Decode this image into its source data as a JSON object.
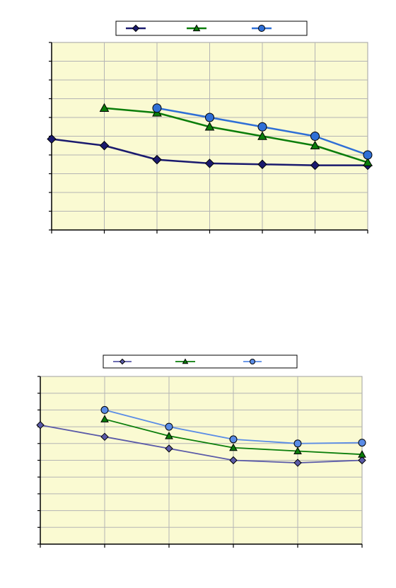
{
  "colors": {
    "plot_background": "#fafad2",
    "series_navy": "#1a1a6e",
    "series_green": "#0a7d0a",
    "series_blue": "#2f6fd6",
    "series_slate": "#5a5aa8",
    "series_lightblue": "#5a8ce6"
  },
  "chart_data": [
    {
      "type": "line",
      "title": "",
      "xlabel": "",
      "ylabel": "",
      "legend_position": "top-center",
      "grid": true,
      "x": [
        0,
        1,
        2,
        3,
        4,
        5,
        6
      ],
      "xlim": [
        0,
        6
      ],
      "ylim": [
        0,
        10
      ],
      "series": [
        {
          "values": [
            4.85,
            4.5,
            3.75,
            3.55,
            3.5,
            3.45,
            3.45
          ],
          "color": "#1a1a6e",
          "marker": "diamond"
        },
        {
          "values": [
            null,
            6.5,
            6.25,
            5.5,
            5.0,
            4.5,
            3.6
          ],
          "color": "#0a7d0a",
          "marker": "triangle"
        },
        {
          "values": [
            null,
            null,
            6.5,
            6.0,
            5.5,
            5.0,
            4.0
          ],
          "color": "#2f6fd6",
          "marker": "circle"
        }
      ]
    },
    {
      "type": "line",
      "title": "",
      "xlabel": "",
      "ylabel": "",
      "legend_position": "top-center",
      "grid": true,
      "x": [
        0,
        1,
        2,
        3,
        4,
        5
      ],
      "xlim": [
        0,
        5
      ],
      "ylim": [
        0,
        10
      ],
      "series": [
        {
          "values": [
            7.1,
            6.4,
            5.7,
            5.0,
            4.85,
            5.0
          ],
          "color": "#5a5aa8",
          "marker": "diamond"
        },
        {
          "values": [
            null,
            7.45,
            6.45,
            5.75,
            5.55,
            5.35
          ],
          "color": "#0a7d0a",
          "marker": "triangle"
        },
        {
          "values": [
            null,
            8.0,
            7.0,
            6.25,
            6.0,
            6.05
          ],
          "color": "#5a8ce6",
          "marker": "circle"
        }
      ]
    }
  ]
}
